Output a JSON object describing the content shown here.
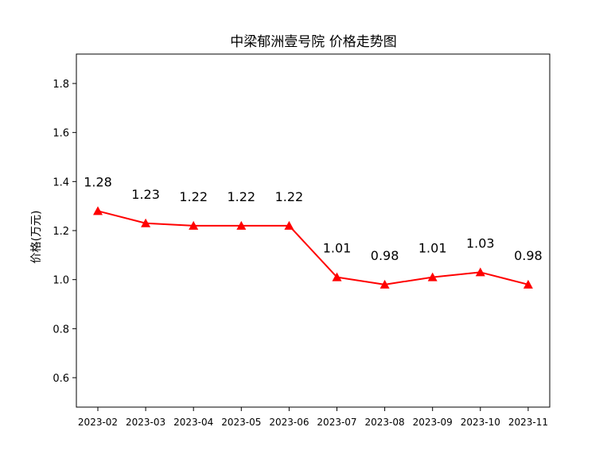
{
  "chart_data": {
    "type": "line",
    "title": "中梁郁洲壹号院 价格走势图",
    "xlabel": "",
    "ylabel": "价格(万元)",
    "x": [
      "2023-02",
      "2023-03",
      "2023-04",
      "2023-05",
      "2023-06",
      "2023-07",
      "2023-08",
      "2023-09",
      "2023-10",
      "2023-11"
    ],
    "series": [
      {
        "values": [
          1.28,
          1.23,
          1.22,
          1.22,
          1.22,
          1.01,
          0.98,
          1.01,
          1.03,
          0.98
        ],
        "data_labels": [
          "1.28",
          "1.23",
          "1.22",
          "1.22",
          "1.22",
          "1.01",
          "0.98",
          "1.01",
          "1.03",
          "0.98"
        ],
        "color": "#ff0000",
        "marker": "triangle-up"
      }
    ],
    "yticks": [
      "0.6",
      "0.8",
      "1.0",
      "1.2",
      "1.4",
      "1.6",
      "1.8"
    ],
    "ylim": [
      0.48,
      1.92
    ],
    "grid": false,
    "legend": "none"
  }
}
